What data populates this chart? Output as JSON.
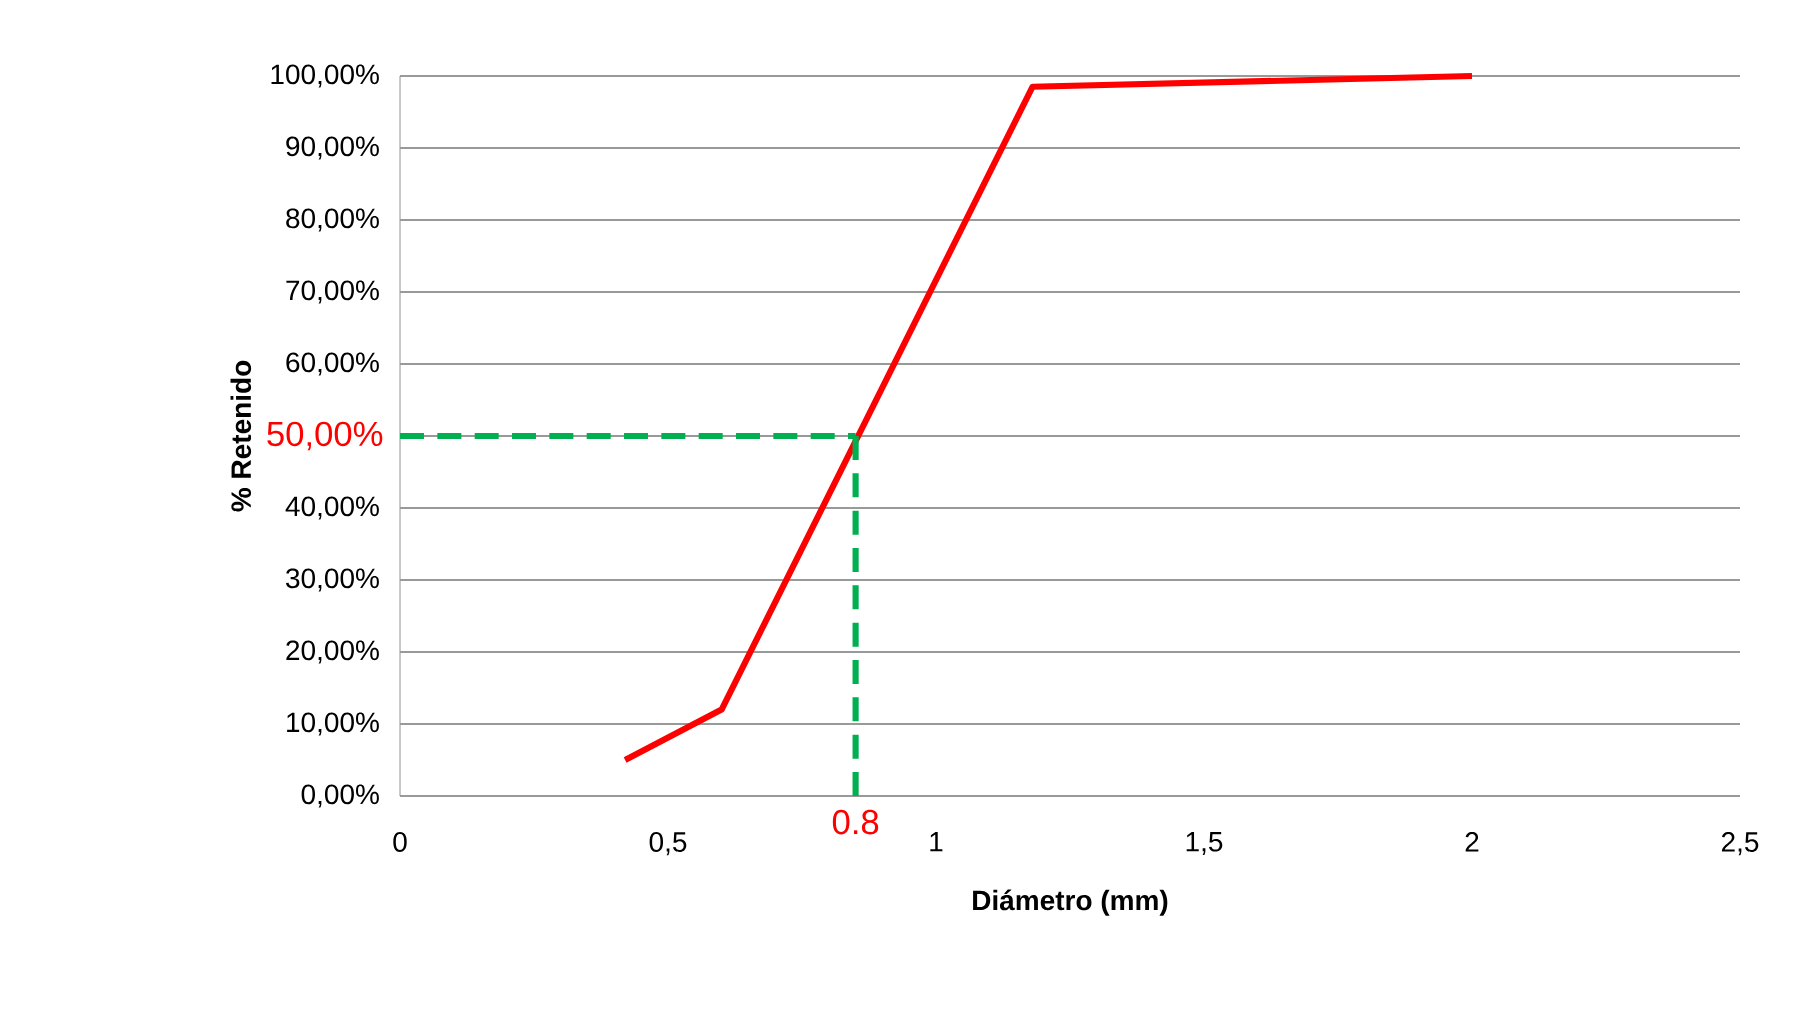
{
  "chart_data": {
    "type": "line",
    "xlabel": "Diámetro (mm)",
    "ylabel": "% Retenido",
    "x": [
      0.42,
      0.6,
      1.18,
      2
    ],
    "series": [
      {
        "color": "#ff0000",
        "values": [
          5,
          12,
          98.5,
          100
        ]
      }
    ],
    "xlim": [
      0,
      2.5
    ],
    "xticks": [
      0,
      {
        "value": 0.5,
        "label": "0,5"
      },
      1,
      {
        "value": 1.5,
        "label": "1,5"
      },
      2,
      {
        "value": 2.5,
        "label": "2,5"
      }
    ],
    "ylim": [
      0,
      100
    ],
    "yticks": [
      {
        "value": 0,
        "label": "0,00%"
      },
      {
        "value": 10,
        "label": "10,00%"
      },
      {
        "value": 20,
        "label": "20,00%"
      },
      {
        "value": 30,
        "label": "30,00%"
      },
      {
        "value": 40,
        "label": "40,00%"
      },
      {
        "value": 50,
        "label": null
      },
      {
        "value": 60,
        "label": "60,00%"
      },
      {
        "value": 70,
        "label": "70,00%"
      },
      {
        "value": 80,
        "label": "80,00%"
      },
      {
        "value": 90,
        "label": "90,00%"
      },
      {
        "value": 100,
        "label": "100,00%"
      }
    ],
    "ref_lines": [
      {
        "axis": "y",
        "value": 50,
        "label": "50,00%",
        "color": "#00b050",
        "line_style": "dashed"
      },
      {
        "axis": "x",
        "value": 0.85,
        "label": "0.8",
        "color": "#00b050",
        "line_style": "dashed"
      }
    ],
    "grid": "y",
    "marker": "none",
    "line_style": "solid"
  }
}
